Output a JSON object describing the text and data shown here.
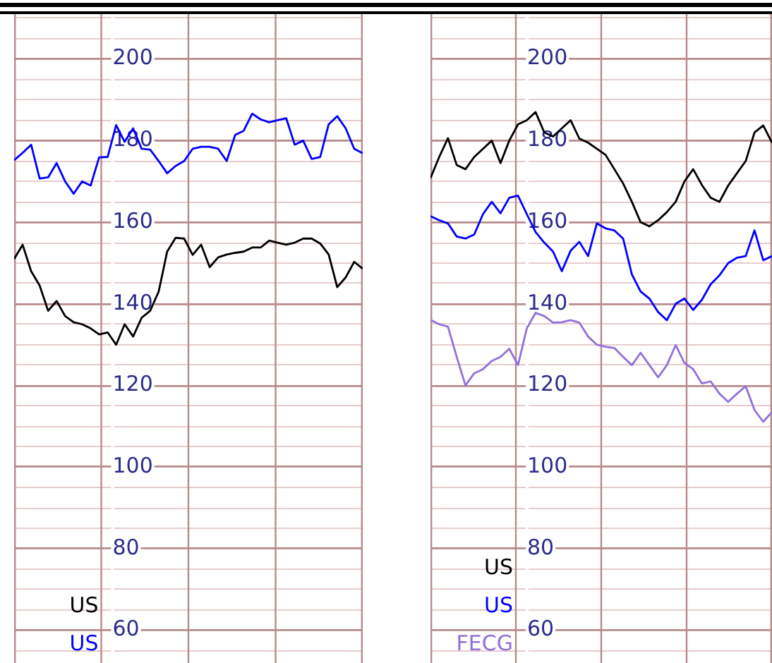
{
  "chart_data": [
    {
      "type": "line",
      "categories": [
        null,
        null,
        null,
        null,
        null,
        null,
        null,
        null,
        null,
        null,
        null,
        null,
        null,
        null,
        null,
        null,
        null,
        null,
        null,
        null,
        null,
        null,
        null,
        null,
        null,
        null,
        null,
        null,
        null,
        null,
        null,
        null,
        null,
        null,
        null,
        null,
        null,
        null,
        null,
        null,
        null,
        null
      ],
      "series": [
        {
          "name": "US",
          "color": "#000000",
          "values": [
            151,
            154.5,
            148,
            144.5,
            138.3,
            140.7,
            137,
            135.5,
            135,
            134,
            132.5,
            133,
            130,
            135,
            132,
            136.6,
            138.3,
            143,
            152.8,
            156.2,
            156,
            152,
            154.5,
            149,
            151.4,
            152.1,
            152.5,
            152.8,
            153.8,
            153.8,
            155.5,
            155,
            154.5,
            155,
            156,
            156,
            154.8,
            152.1,
            144.1,
            146.5,
            150.3,
            148.6
          ]
        },
        {
          "name": "US",
          "color": "#0000ff",
          "values": [
            175.2,
            177,
            179,
            170.7,
            171,
            174.5,
            170,
            167,
            170,
            169,
            175.9,
            176,
            183.8,
            179.7,
            183,
            178,
            177.8,
            175,
            172,
            173.8,
            175,
            178,
            178.5,
            178.5,
            178,
            175,
            181.4,
            182.4,
            186.6,
            185.2,
            184.5,
            185,
            185.5,
            179,
            180,
            175.5,
            176,
            184,
            186,
            183,
            178,
            176.9
          ]
        }
      ],
      "ylim": [
        52,
        211
      ],
      "yticks": [
        {
          "value": 55,
          "label": null
        },
        60,
        {
          "value": 65,
          "label": null
        },
        {
          "value": 70,
          "label": null
        },
        {
          "value": 75,
          "label": null
        },
        80,
        {
          "value": 85,
          "label": null
        },
        {
          "value": 90,
          "label": null
        },
        {
          "value": 95,
          "label": null
        },
        100,
        {
          "value": 105,
          "label": null
        },
        {
          "value": 110,
          "label": null
        },
        {
          "value": 115,
          "label": null
        },
        120,
        {
          "value": 125,
          "label": null
        },
        {
          "value": 130,
          "label": null
        },
        {
          "value": 135,
          "label": null
        },
        140,
        {
          "value": 145,
          "label": null
        },
        {
          "value": 150,
          "label": null
        },
        {
          "value": 155,
          "label": null
        },
        160,
        {
          "value": 165,
          "label": null
        },
        {
          "value": 170,
          "label": null
        },
        {
          "value": 175,
          "label": null
        },
        180,
        {
          "value": 185,
          "label": null
        },
        {
          "value": 190,
          "label": null
        },
        {
          "value": 195,
          "label": null
        },
        200,
        {
          "value": 205,
          "label": null
        },
        {
          "value": 210,
          "label": null
        }
      ],
      "grid": true,
      "legend": "bottom",
      "tick_labels": "y"
    },
    {
      "type": "line",
      "categories": [
        null,
        null,
        null,
        null,
        null,
        null,
        null,
        null,
        null,
        null,
        null,
        null,
        null,
        null,
        null,
        null,
        null,
        null,
        null,
        null,
        null,
        null,
        null,
        null,
        null,
        null,
        null,
        null,
        null,
        null,
        null,
        null,
        null,
        null,
        null,
        null,
        null,
        null,
        null,
        null
      ],
      "series": [
        {
          "name": "US",
          "color": "#000000",
          "values": [
            170.8,
            176,
            180.6,
            174,
            173,
            176,
            178,
            180,
            174.5,
            180,
            184,
            185,
            187,
            182,
            181,
            183,
            185,
            180.5,
            179.5,
            178,
            176.5,
            173,
            169.5,
            165,
            160,
            159,
            160.5,
            162.5,
            165,
            170,
            173,
            169.1,
            166,
            165,
            169,
            172,
            175,
            182,
            183.7,
            179.5
          ]
        },
        {
          "name": "US",
          "color": "#0000ff",
          "values": [
            161.5,
            160.5,
            159.7,
            156.5,
            156,
            157,
            162,
            165,
            162.2,
            166,
            166.5,
            162,
            157.6,
            155,
            152.8,
            148,
            153,
            155.2,
            151.7,
            159.7,
            158.5,
            158,
            156,
            147.2,
            143,
            141.3,
            138,
            136,
            140,
            141.3,
            138.5,
            141,
            144.8,
            147,
            150,
            151.3,
            151.7,
            158,
            150.7,
            151.7
          ]
        },
        {
          "name": "FECG",
          "color": "#9370db",
          "values": [
            136.1,
            135,
            134.4,
            127,
            120,
            123,
            124,
            126,
            127,
            129,
            125,
            134,
            137.8,
            137,
            135.4,
            135.5,
            136,
            135.4,
            132,
            130,
            129.5,
            129.2,
            127,
            125,
            128,
            125,
            122,
            125,
            129.9,
            125.5,
            124,
            120.5,
            121,
            118,
            116,
            118,
            119.8,
            114,
            111.1,
            113.5
          ]
        }
      ],
      "ylim": [
        52,
        211
      ],
      "yticks": [
        {
          "value": 55,
          "label": null
        },
        60,
        {
          "value": 65,
          "label": null
        },
        {
          "value": 70,
          "label": null
        },
        {
          "value": 75,
          "label": null
        },
        80,
        {
          "value": 85,
          "label": null
        },
        {
          "value": 90,
          "label": null
        },
        {
          "value": 95,
          "label": null
        },
        100,
        {
          "value": 105,
          "label": null
        },
        {
          "value": 110,
          "label": null
        },
        {
          "value": 115,
          "label": null
        },
        120,
        {
          "value": 125,
          "label": null
        },
        {
          "value": 130,
          "label": null
        },
        {
          "value": 135,
          "label": null
        },
        140,
        {
          "value": 145,
          "label": null
        },
        {
          "value": 150,
          "label": null
        },
        {
          "value": 155,
          "label": null
        },
        160,
        {
          "value": 165,
          "label": null
        },
        {
          "value": 170,
          "label": null
        },
        {
          "value": 175,
          "label": null
        },
        180,
        {
          "value": 185,
          "label": null
        },
        {
          "value": 190,
          "label": null
        },
        {
          "value": 195,
          "label": null
        },
        200,
        {
          "value": 205,
          "label": null
        },
        {
          "value": 210,
          "label": null
        }
      ],
      "grid": true,
      "legend": "bottom",
      "tick_labels": "y"
    }
  ]
}
